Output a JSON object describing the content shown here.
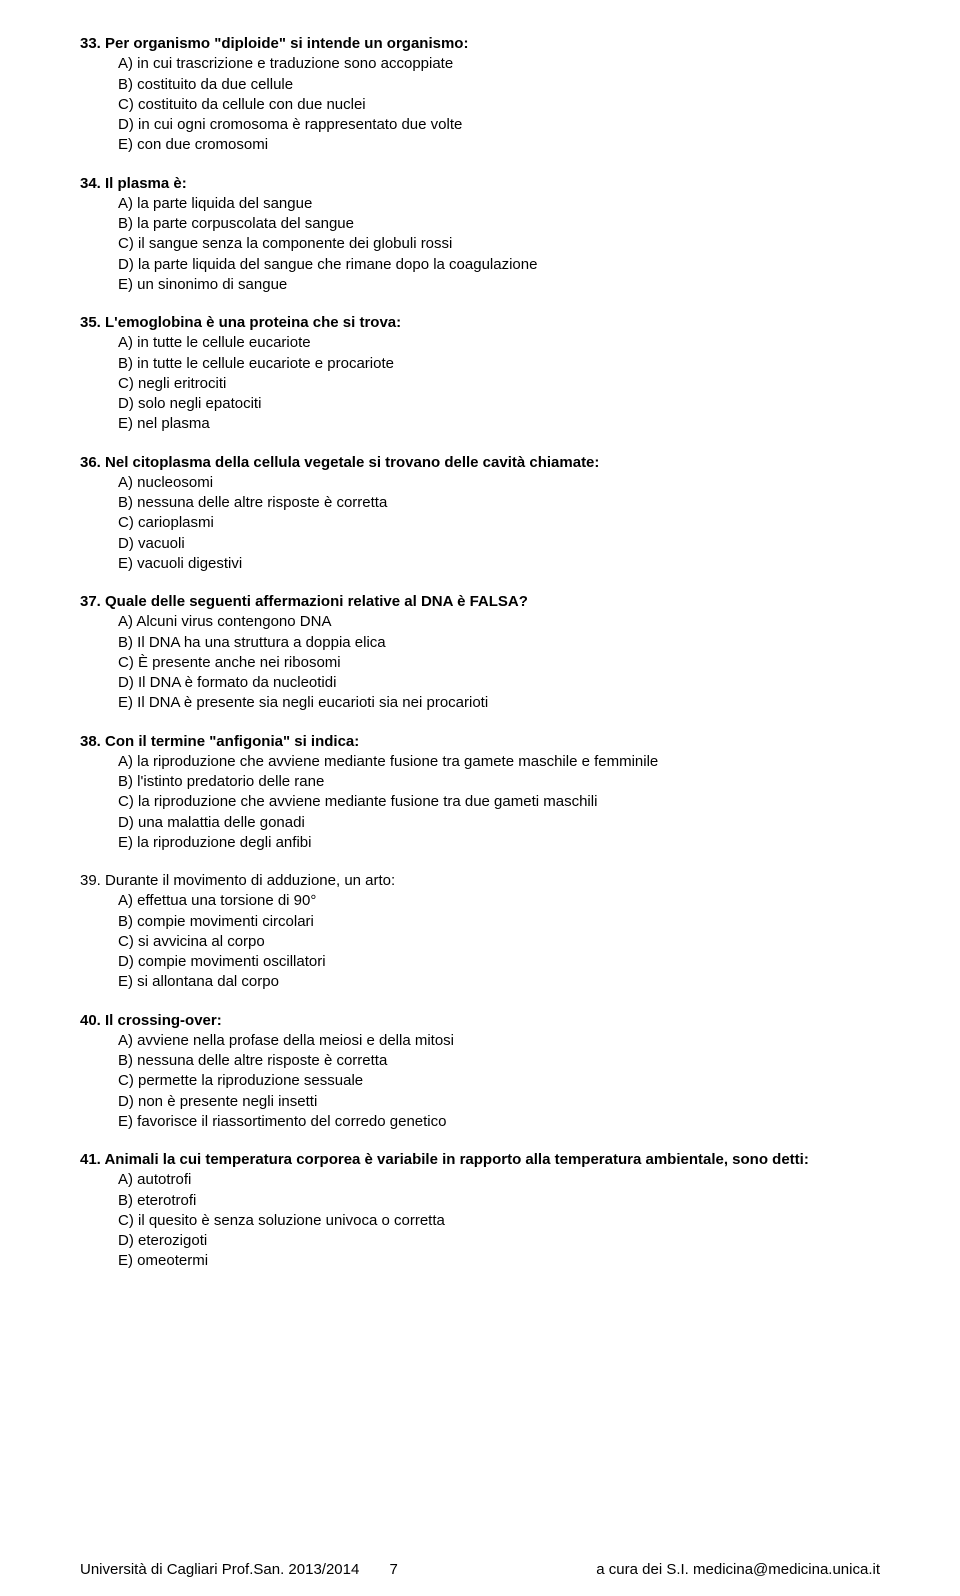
{
  "questions": [
    {
      "num": "33.",
      "bold": true,
      "text": "Per organismo \"diploide\" si intende un organismo:",
      "options": [
        "A) in cui trascrizione e traduzione sono accoppiate",
        "B) costituito da due cellule",
        "C) costituito da cellule con due nuclei",
        "D) in cui ogni cromosoma è rappresentato due volte",
        "E) con due cromosomi"
      ]
    },
    {
      "num": "34.",
      "bold": true,
      "text": "Il plasma è:",
      "options": [
        "A) la parte liquida del sangue",
        "B) la parte corpuscolata del sangue",
        "C) il sangue senza la componente dei globuli rossi",
        "D) la parte liquida del sangue che rimane dopo la coagulazione",
        "E) un sinonimo di sangue"
      ]
    },
    {
      "num": "35.",
      "bold": true,
      "text": "L'emoglobina è una proteina che si trova:",
      "options": [
        "A) in tutte le cellule eucariote",
        "B) in tutte le cellule eucariote e procariote",
        "C) negli eritrociti",
        "D) solo negli epatociti",
        "E) nel plasma"
      ]
    },
    {
      "num": "36.",
      "bold": true,
      "text": "Nel citoplasma della cellula vegetale si trovano delle cavità chiamate:",
      "options": [
        "A) nucleosomi",
        "B) nessuna delle altre risposte è corretta",
        "C) carioplasmi",
        "D) vacuoli",
        "E) vacuoli digestivi"
      ]
    },
    {
      "num": "37.",
      "bold": true,
      "text": "Quale delle seguenti affermazioni relative al DNA è FALSA?",
      "options": [
        "A) Alcuni virus contengono DNA",
        "B) Il DNA ha una struttura a doppia elica",
        "C) È presente anche nei ribosomi",
        "D) Il DNA è formato da nucleotidi",
        "E) Il DNA è presente sia negli eucarioti sia nei procarioti"
      ]
    },
    {
      "num": "38.",
      "bold": true,
      "text": "Con il termine \"anfigonia\" si indica:",
      "options": [
        "A) la riproduzione che avviene mediante fusione tra gamete maschile e femminile",
        "B) l'istinto predatorio delle rane",
        "C) la riproduzione che avviene mediante fusione tra due gameti maschili",
        "D) una malattia delle gonadi",
        "E) la riproduzione degli anfibi"
      ]
    },
    {
      "num": "39.",
      "bold": false,
      "text": "Durante il movimento di adduzione, un arto:",
      "options": [
        "A) effettua una torsione di 90°",
        "B) compie movimenti circolari",
        "C) si avvicina al corpo",
        "D) compie movimenti oscillatori",
        "E) si allontana dal corpo"
      ]
    },
    {
      "num": "40.",
      "bold": true,
      "text": "Il crossing-over:",
      "options": [
        "A) avviene nella profase della meiosi e della mitosi",
        "B) nessuna delle altre risposte è corretta",
        "C) permette la riproduzione sessuale",
        "D) non è presente negli insetti",
        "E) favorisce il riassortimento del corredo genetico"
      ]
    },
    {
      "num": "41.",
      "bold": true,
      "text": "Animali la cui temperatura corporea è variabile in rapporto alla temperatura ambientale, sono detti:",
      "options": [
        "A) autotrofi",
        "B) eterotrofi",
        "C) il quesito è senza soluzione univoca o corretta",
        "D) eterozigoti",
        "E) omeotermi"
      ]
    }
  ],
  "footer": {
    "left": "Università di Cagliari Prof.San. 2013/2014",
    "page": "7",
    "right": "a cura dei S.I. medicina@medicina.unica.it"
  }
}
